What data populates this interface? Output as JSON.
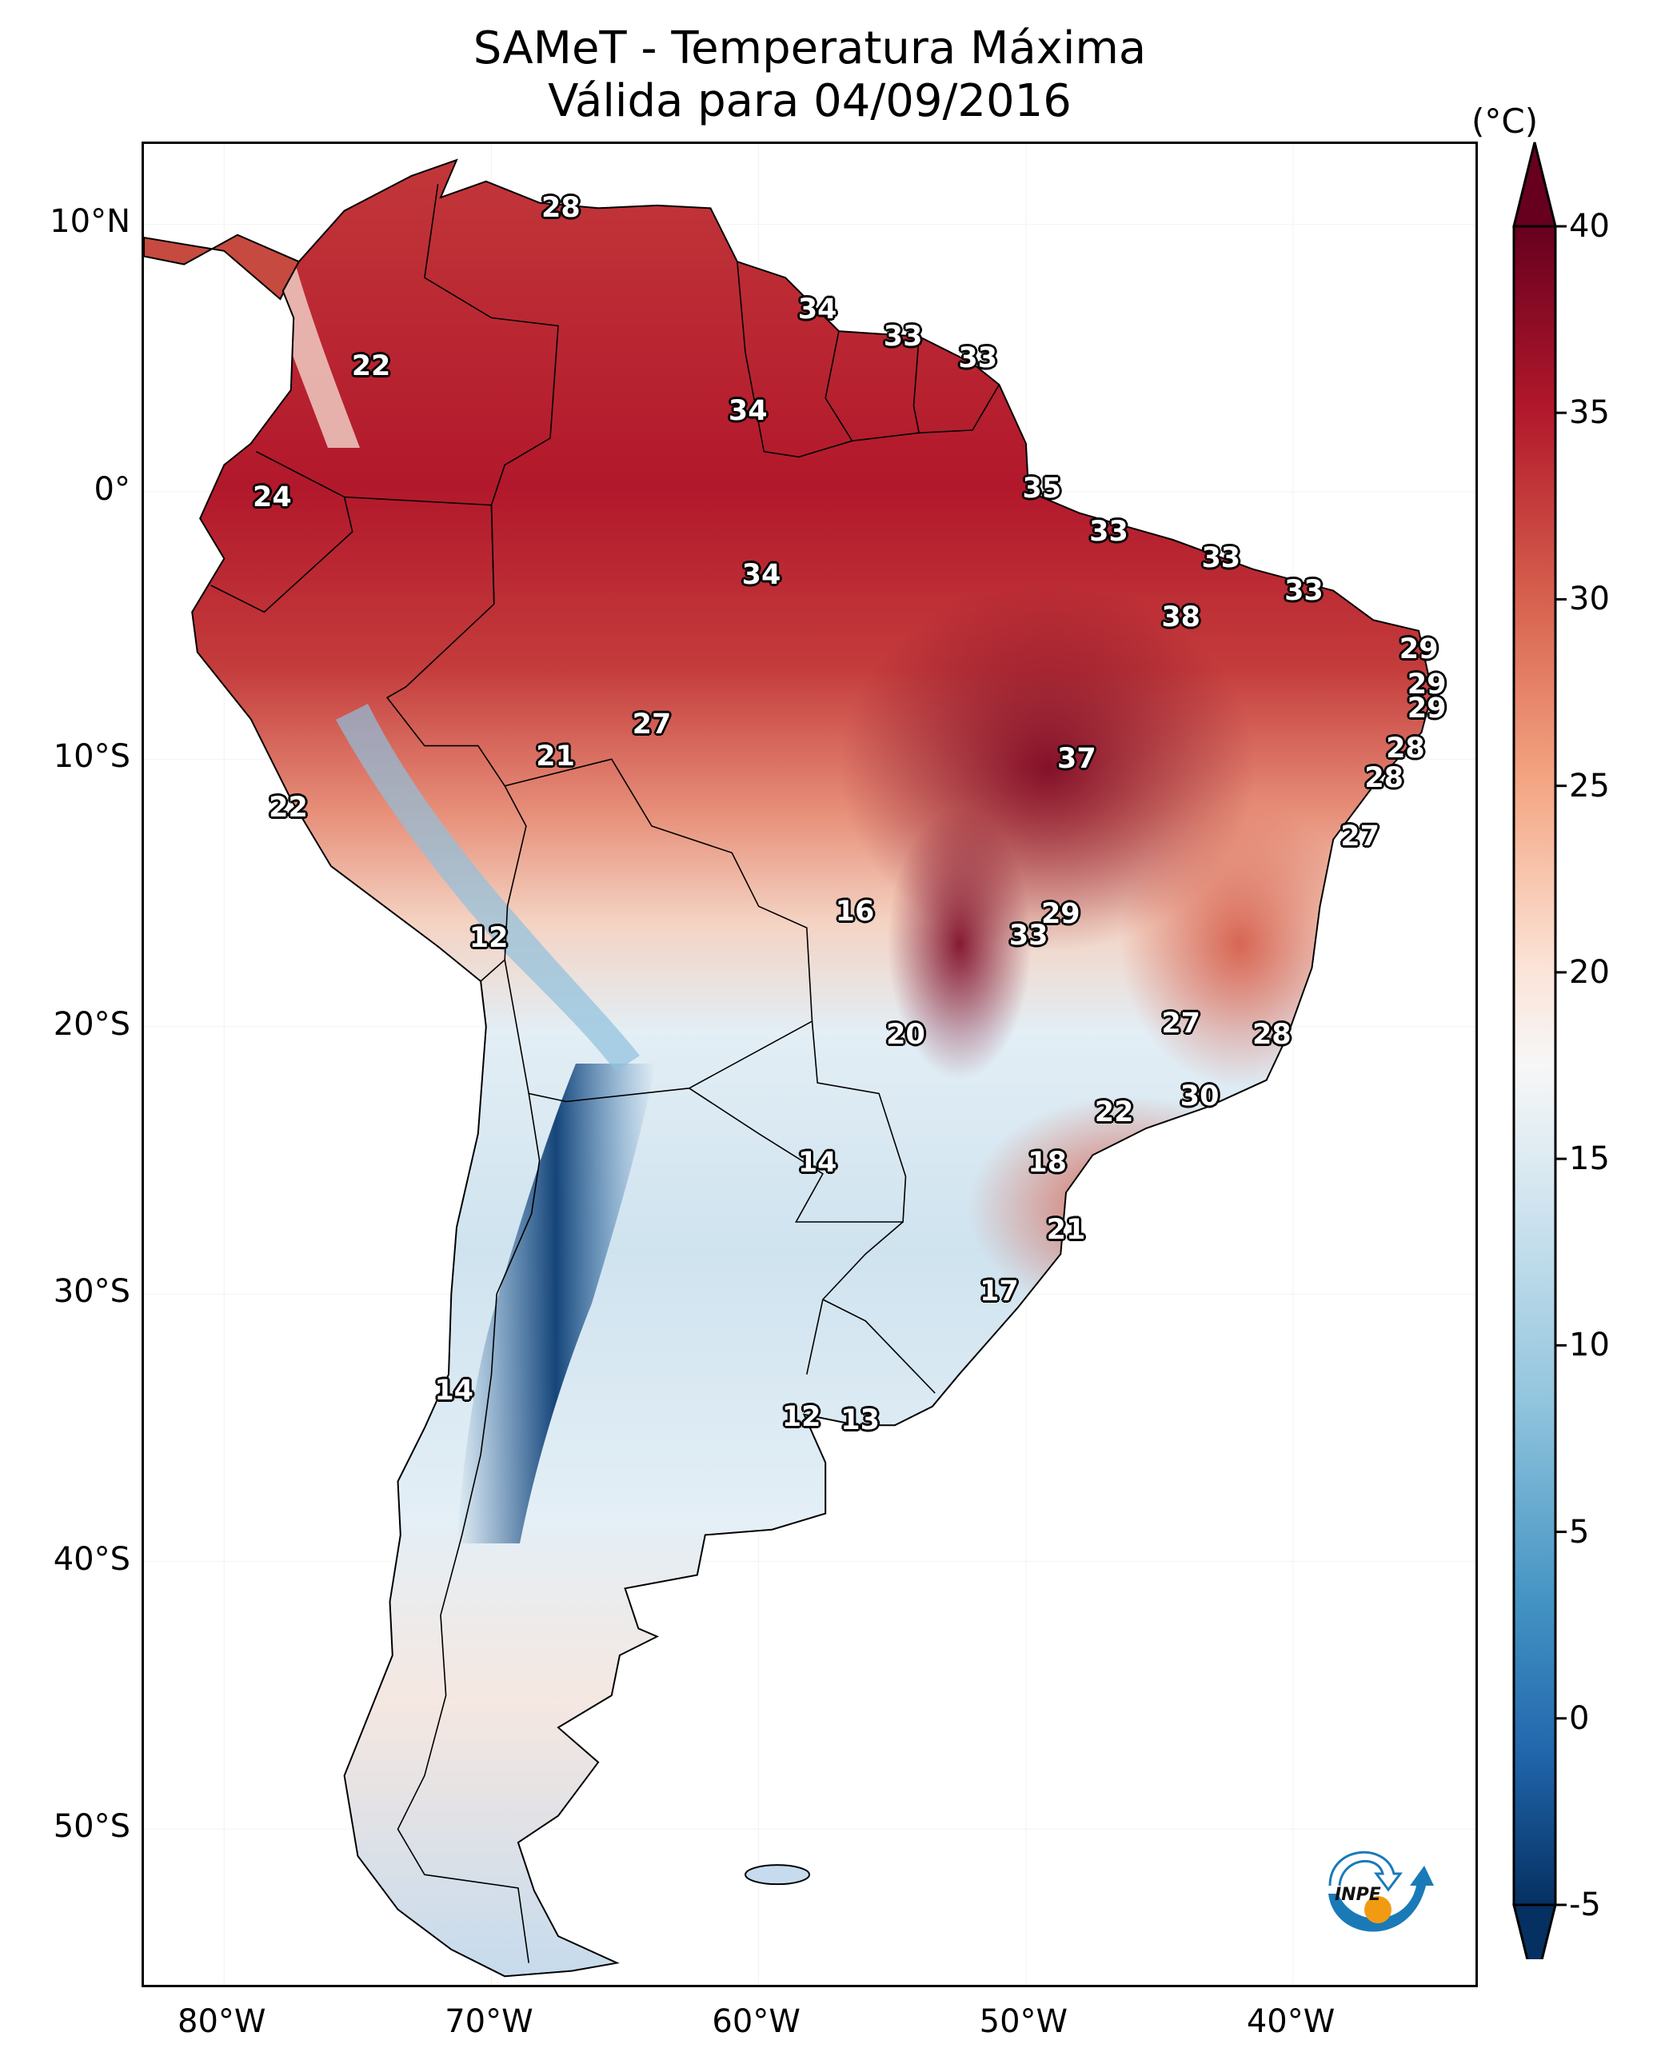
{
  "chart_data": {
    "type": "heatmap",
    "title": "SAMeT - Temperatura Máxima",
    "subtitle": "Válida para 04/09/2016",
    "region": "South America",
    "xlabel": "",
    "ylabel": "",
    "lon_range": [
      -83,
      -33
    ],
    "lat_range": [
      -56,
      13
    ],
    "x_ticks": [
      {
        "value": -80,
        "label": "80°W"
      },
      {
        "value": -70,
        "label": "70°W"
      },
      {
        "value": -60,
        "label": "60°W"
      },
      {
        "value": -50,
        "label": "50°W"
      },
      {
        "value": -40,
        "label": "40°W"
      }
    ],
    "y_ticks": [
      {
        "value": 10,
        "label": "10°N"
      },
      {
        "value": 0,
        "label": "0°"
      },
      {
        "value": -10,
        "label": "10°S"
      },
      {
        "value": -20,
        "label": "20°S"
      },
      {
        "value": -30,
        "label": "30°S"
      },
      {
        "value": -40,
        "label": "40°S"
      },
      {
        "value": -50,
        "label": "50°S"
      }
    ],
    "colorbar": {
      "unit": "(°C)",
      "range": [
        -5,
        40
      ],
      "extend": "both",
      "colormap": "RdBu_r",
      "ticks": [
        {
          "value": 40,
          "label": "40"
        },
        {
          "value": 35,
          "label": "35"
        },
        {
          "value": 30,
          "label": "30"
        },
        {
          "value": 25,
          "label": "25"
        },
        {
          "value": 20,
          "label": "20"
        },
        {
          "value": 15,
          "label": "15"
        },
        {
          "value": 10,
          "label": "10"
        },
        {
          "value": 5,
          "label": "5"
        },
        {
          "value": 0,
          "label": "0"
        },
        {
          "value": -5,
          "label": "-5"
        }
      ],
      "colors": {
        "low": "#053061",
        "mid_low": "#4393c3",
        "mid": "#f7f7f7",
        "mid_high": "#d6604d",
        "high": "#67001f"
      }
    },
    "point_labels": [
      {
        "lon": -67.4,
        "lat": 10.6,
        "value": "28"
      },
      {
        "lon": -74.5,
        "lat": 4.7,
        "value": "22"
      },
      {
        "lon": -57.8,
        "lat": 6.8,
        "value": "34"
      },
      {
        "lon": -54.6,
        "lat": 5.8,
        "value": "33"
      },
      {
        "lon": -51.8,
        "lat": 5.0,
        "value": "33"
      },
      {
        "lon": -60.4,
        "lat": 3.0,
        "value": "34"
      },
      {
        "lon": -49.4,
        "lat": 0.1,
        "value": "35"
      },
      {
        "lon": -78.2,
        "lat": -0.2,
        "value": "24"
      },
      {
        "lon": -46.9,
        "lat": -1.5,
        "value": "33"
      },
      {
        "lon": -59.9,
        "lat": -3.1,
        "value": "34"
      },
      {
        "lon": -42.7,
        "lat": -2.5,
        "value": "33"
      },
      {
        "lon": -39.6,
        "lat": -3.7,
        "value": "33"
      },
      {
        "lon": -44.2,
        "lat": -4.7,
        "value": "38"
      },
      {
        "lon": -35.3,
        "lat": -5.9,
        "value": "29"
      },
      {
        "lon": -35.0,
        "lat": -7.2,
        "value": "29"
      },
      {
        "lon": -35.0,
        "lat": -8.1,
        "value": "29"
      },
      {
        "lon": -35.8,
        "lat": -9.6,
        "value": "28"
      },
      {
        "lon": -36.6,
        "lat": -10.7,
        "value": "28"
      },
      {
        "lon": -64.0,
        "lat": -8.7,
        "value": "27"
      },
      {
        "lon": -67.6,
        "lat": -9.9,
        "value": "21"
      },
      {
        "lon": -48.1,
        "lat": -10.0,
        "value": "37"
      },
      {
        "lon": -77.6,
        "lat": -11.8,
        "value": "22"
      },
      {
        "lon": -37.5,
        "lat": -12.9,
        "value": "27"
      },
      {
        "lon": -56.4,
        "lat": -15.7,
        "value": "16"
      },
      {
        "lon": -70.1,
        "lat": -16.7,
        "value": "12"
      },
      {
        "lon": -48.7,
        "lat": -15.8,
        "value": "29"
      },
      {
        "lon": -49.9,
        "lat": -16.6,
        "value": "33"
      },
      {
        "lon": -54.5,
        "lat": -20.3,
        "value": "20"
      },
      {
        "lon": -44.2,
        "lat": -19.9,
        "value": "27"
      },
      {
        "lon": -40.8,
        "lat": -20.3,
        "value": "28"
      },
      {
        "lon": -43.5,
        "lat": -22.6,
        "value": "30"
      },
      {
        "lon": -46.7,
        "lat": -23.2,
        "value": "22"
      },
      {
        "lon": -57.8,
        "lat": -25.1,
        "value": "14"
      },
      {
        "lon": -49.2,
        "lat": -25.1,
        "value": "18"
      },
      {
        "lon": -48.5,
        "lat": -27.6,
        "value": "21"
      },
      {
        "lon": -51.0,
        "lat": -29.9,
        "value": "17"
      },
      {
        "lon": -71.4,
        "lat": -33.6,
        "value": "14"
      },
      {
        "lon": -58.4,
        "lat": -34.6,
        "value": "12"
      },
      {
        "lon": -56.2,
        "lat": -34.7,
        "value": "13"
      }
    ]
  },
  "logo": {
    "text": "INPE",
    "colors": {
      "blue": "#1a7ab8",
      "orange": "#f29b12"
    }
  }
}
